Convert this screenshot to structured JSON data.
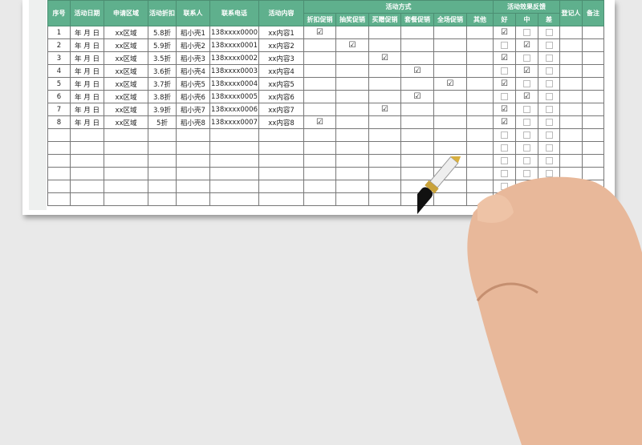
{
  "header": {
    "seq": "序号",
    "date": "活动日期",
    "region": "申请区域",
    "discount": "活动折扣",
    "contact": "联系人",
    "phone": "联系电话",
    "content": "活动内容",
    "methods_title": "活动方式",
    "methods": [
      "折扣促销",
      "抽奖促销",
      "买赠促销",
      "套餐促销",
      "全场促销",
      "其他"
    ],
    "feedback_title": "活动效果反馈",
    "feedback": [
      "好",
      "中",
      "差"
    ],
    "registrar": "登记人",
    "notes": "备注"
  },
  "rows": [
    {
      "seq": "1",
      "date": "年 月 日",
      "region": "xx区域",
      "discount": "5.8折",
      "contact": "稻小壳1",
      "phone": "138xxxx0000",
      "content": "xx内容1",
      "method": 0,
      "feedback": 0
    },
    {
      "seq": "2",
      "date": "年 月 日",
      "region": "xx区域",
      "discount": "5.9折",
      "contact": "稻小壳2",
      "phone": "138xxxx0001",
      "content": "xx内容2",
      "method": 1,
      "feedback": 1
    },
    {
      "seq": "3",
      "date": "年 月 日",
      "region": "xx区域",
      "discount": "3.5折",
      "contact": "稻小壳3",
      "phone": "138xxxx0002",
      "content": "xx内容3",
      "method": 2,
      "feedback": 0
    },
    {
      "seq": "4",
      "date": "年 月 日",
      "region": "xx区域",
      "discount": "3.6折",
      "contact": "稻小壳4",
      "phone": "138xxxx0003",
      "content": "xx内容4",
      "method": 3,
      "feedback": 1
    },
    {
      "seq": "5",
      "date": "年 月 日",
      "region": "xx区域",
      "discount": "3.7折",
      "contact": "稻小壳5",
      "phone": "138xxxx0004",
      "content": "xx内容5",
      "method": 4,
      "feedback": 0
    },
    {
      "seq": "6",
      "date": "年 月 日",
      "region": "xx区域",
      "discount": "3.8折",
      "contact": "稻小壳6",
      "phone": "138xxxx0005",
      "content": "xx内容6",
      "method": 3,
      "feedback": 1
    },
    {
      "seq": "7",
      "date": "年 月 日",
      "region": "xx区域",
      "discount": "3.9折",
      "contact": "稻小壳7",
      "phone": "138xxxx0006",
      "content": "xx内容7",
      "method": 2,
      "feedback": 0
    },
    {
      "seq": "8",
      "date": "年 月 日",
      "region": "xx区域",
      "discount": "5折",
      "contact": "稻小壳8",
      "phone": "138xxxx0007",
      "content": "xx内容8",
      "method": 0,
      "feedback": 0
    }
  ],
  "empty_rows": 6,
  "check_mark": "☑",
  "colors": {
    "header": "#5fb08d"
  }
}
